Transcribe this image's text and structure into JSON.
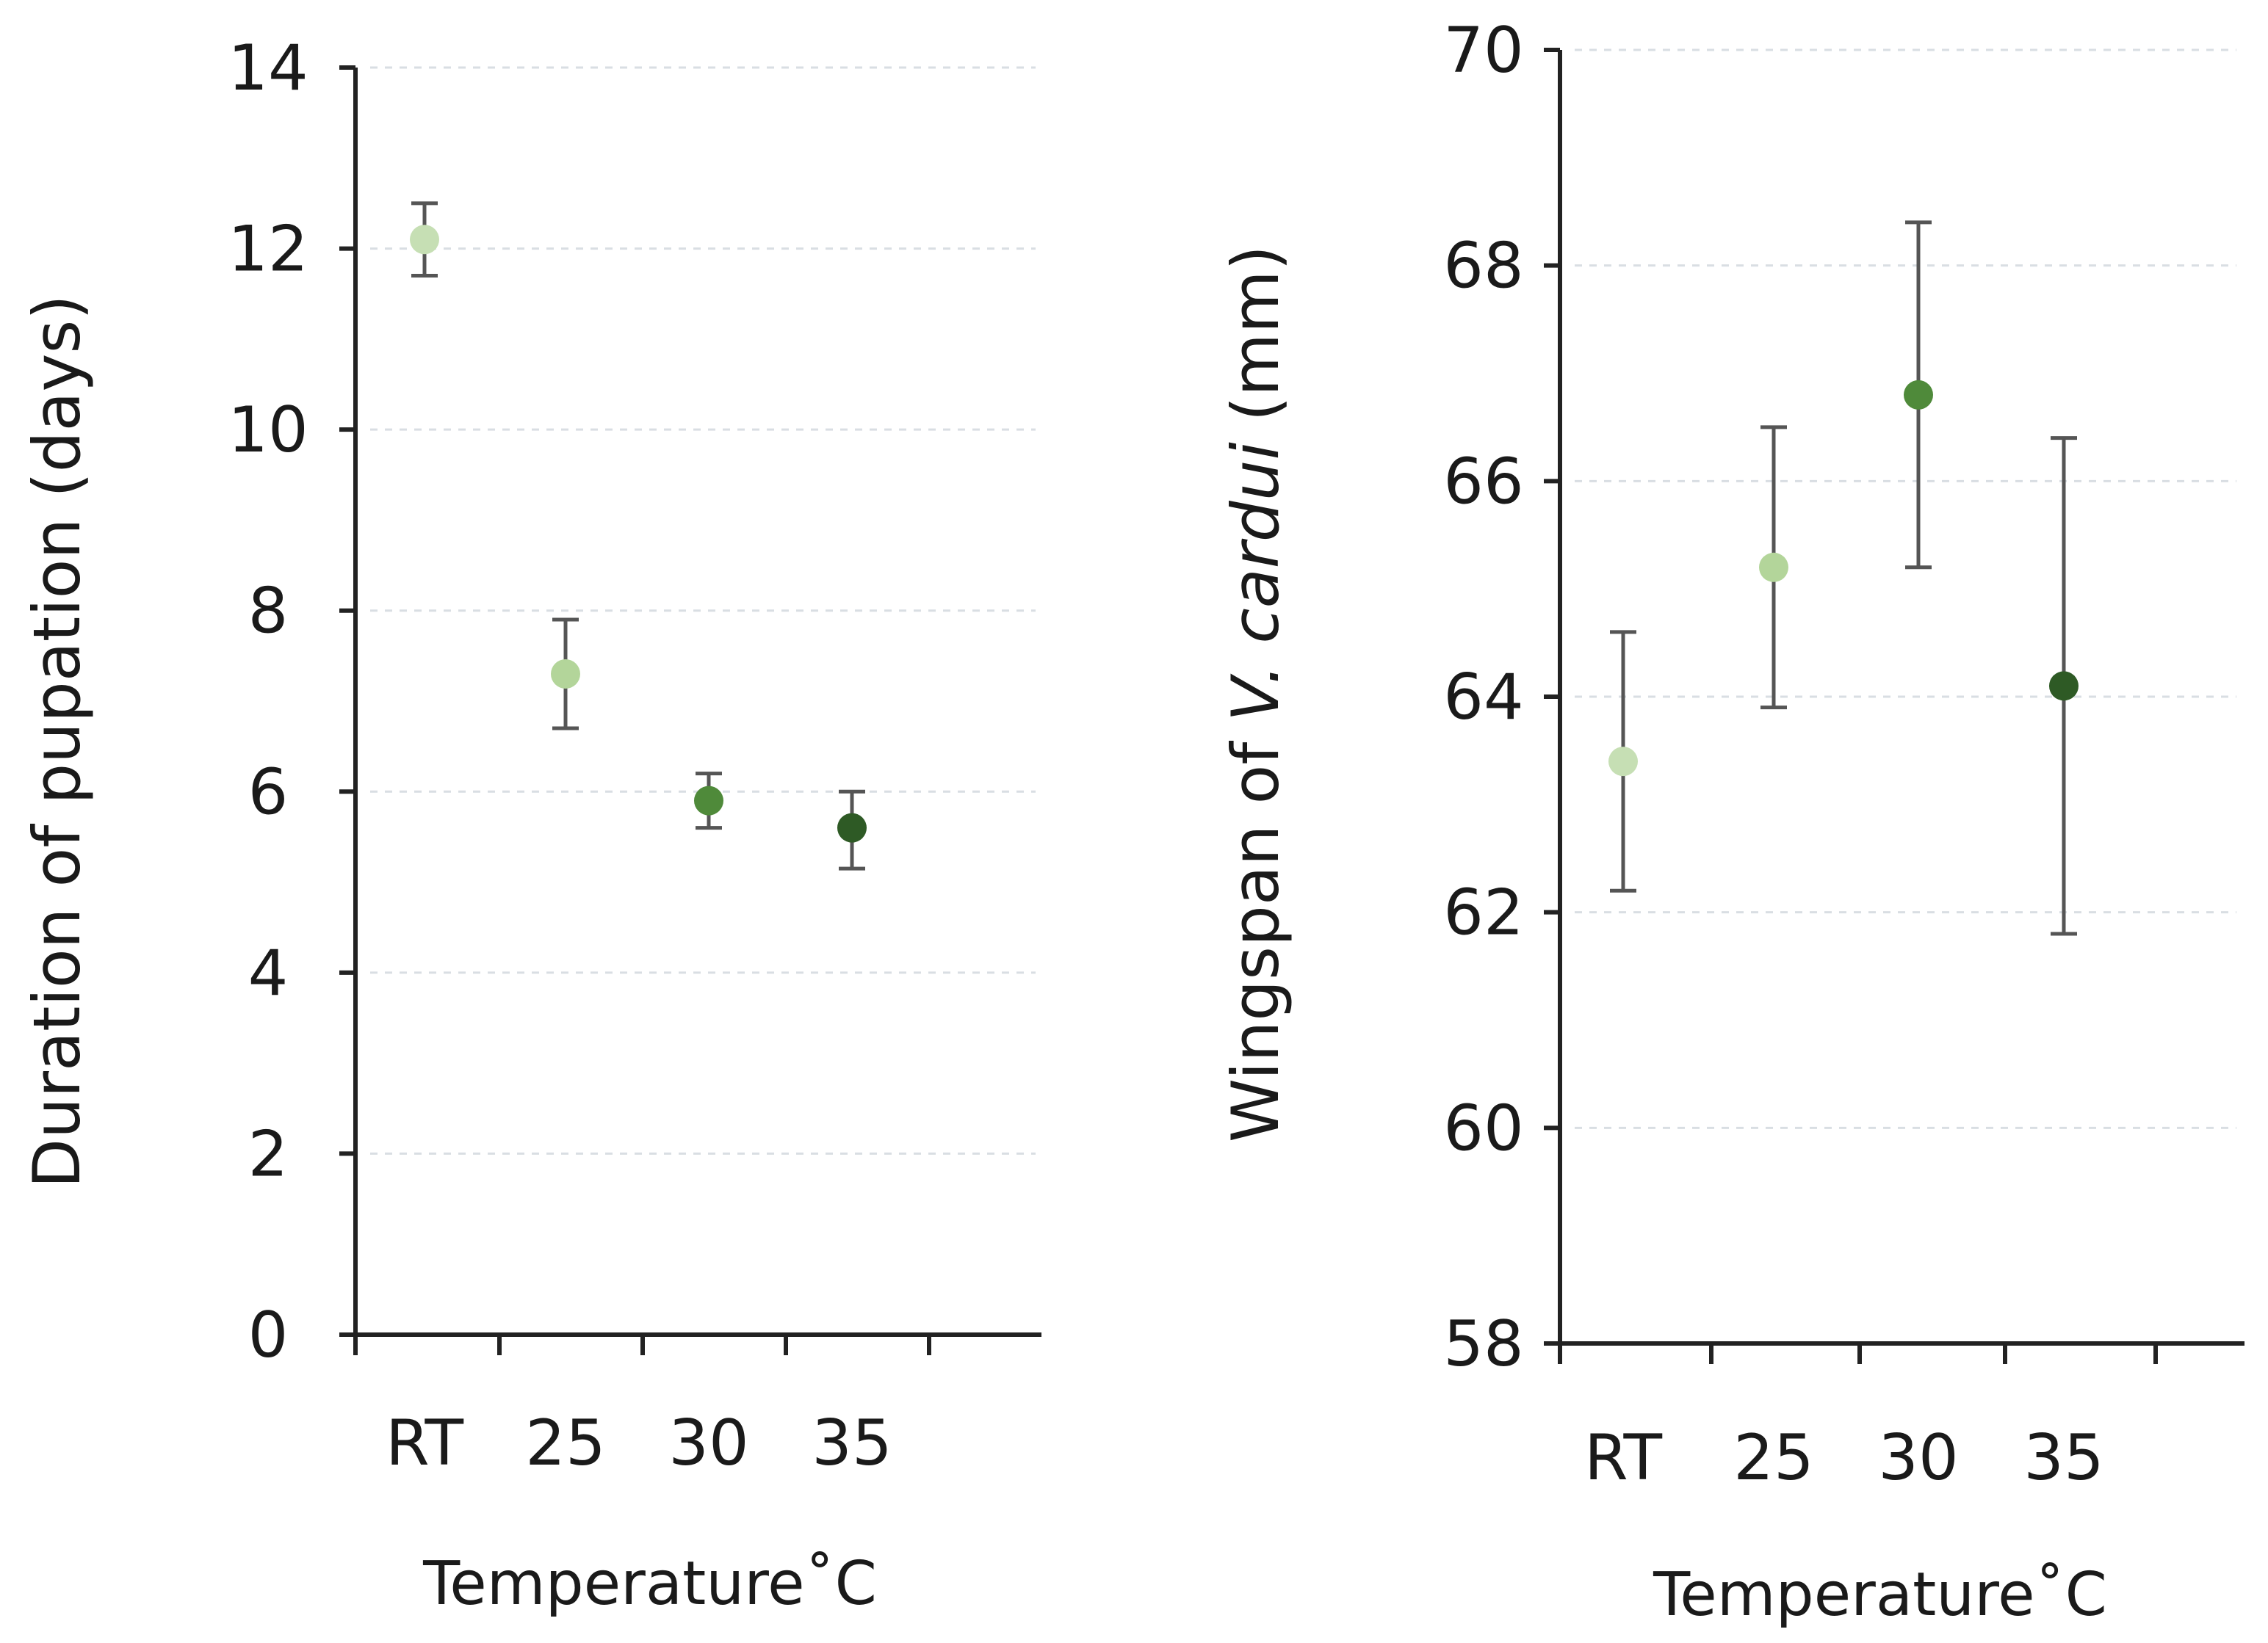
{
  "chart_data": [
    {
      "type": "scatter",
      "title": "",
      "xlabel": "Temperature˚C",
      "ylabel": "Duration of pupation (days)",
      "categories": [
        "RT",
        "25",
        "30",
        "35"
      ],
      "values": [
        12.1,
        7.3,
        5.9,
        5.6
      ],
      "error_low": [
        11.7,
        6.7,
        5.6,
        5.15
      ],
      "error_high": [
        12.5,
        7.9,
        6.2,
        6.0
      ],
      "colors": [
        "#c6dfb4",
        "#b3d59a",
        "#4f8a3a",
        "#2e5a25"
      ],
      "ylim": [
        0,
        14
      ],
      "yticks": [
        "0",
        "2",
        "4",
        "6",
        "8",
        "10",
        "12",
        "14"
      ],
      "grid": true
    },
    {
      "type": "scatter",
      "title": "",
      "xlabel": "Temperature˚C",
      "ylabel_plain": "Wingspan of ",
      "ylabel_italic": "V. cardui",
      "ylabel_unit": " (mm)",
      "categories": [
        "RT",
        "25",
        "30",
        "35"
      ],
      "values": [
        63.4,
        65.2,
        66.8,
        64.1
      ],
      "error_low": [
        62.2,
        63.9,
        65.2,
        61.8
      ],
      "error_high": [
        64.6,
        66.5,
        68.4,
        66.4
      ],
      "colors": [
        "#c6dfb4",
        "#b3d59a",
        "#4f8a3a",
        "#2e5a25"
      ],
      "ylim": [
        58,
        70
      ],
      "yticks": [
        "58",
        "60",
        "62",
        "64",
        "66",
        "68",
        "70"
      ],
      "grid": true
    }
  ]
}
